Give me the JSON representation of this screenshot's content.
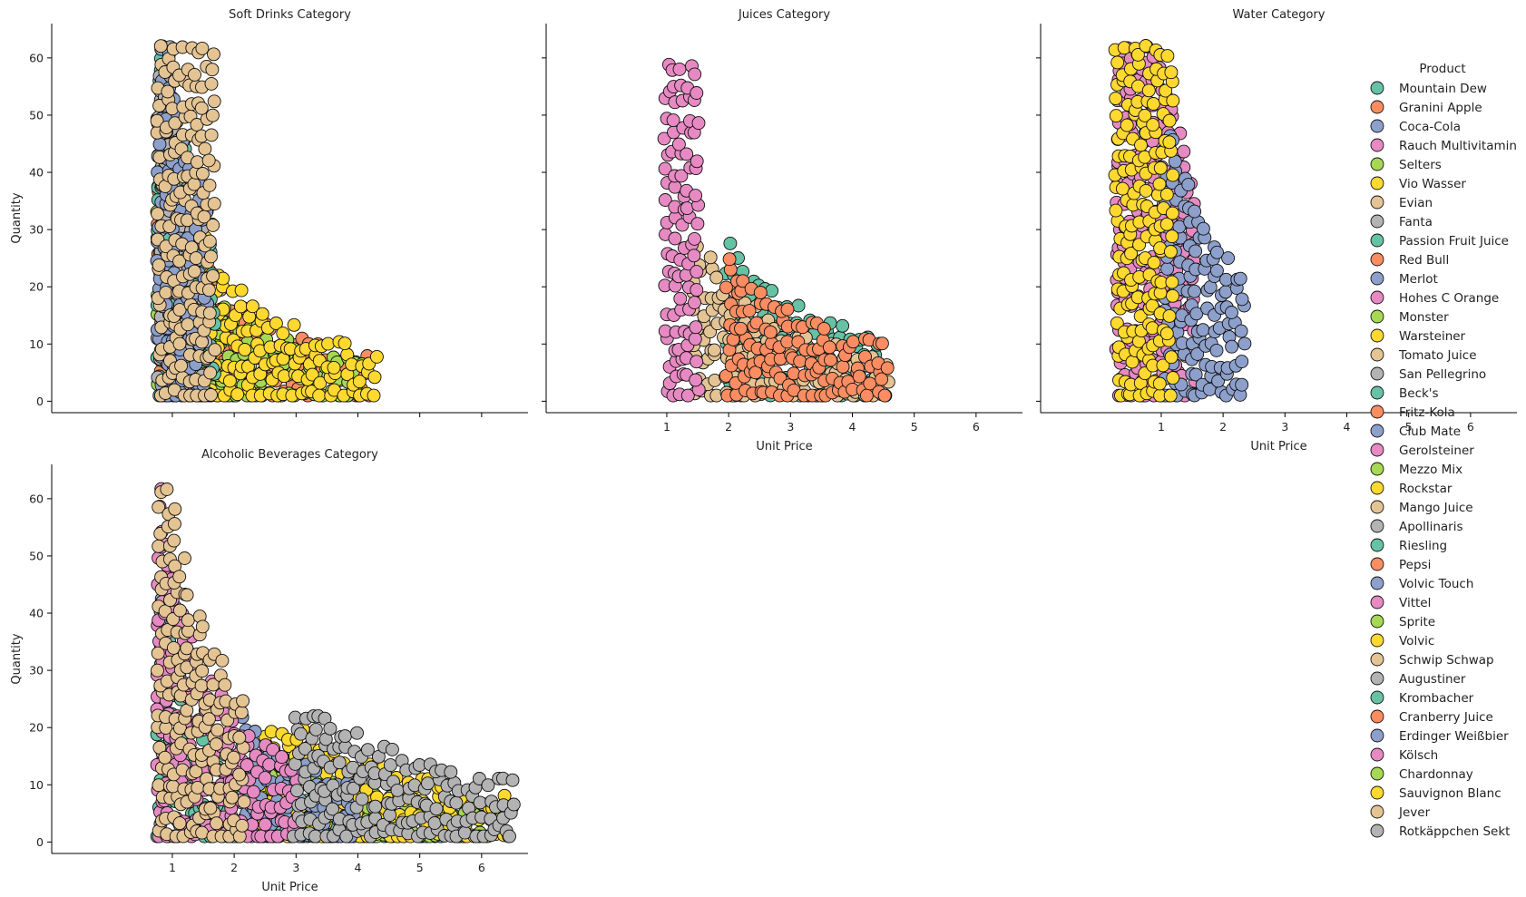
{
  "chart_data": {
    "type": "scatter",
    "x_label": "Unit Price",
    "y_label": "Quantity",
    "xlim": [
      -0.95,
      6.75
    ],
    "ylim": [
      -2,
      66
    ],
    "x_ticks": [
      1,
      2,
      3,
      4,
      5,
      6
    ],
    "y_ticks": [
      0,
      10,
      20,
      30,
      40,
      50,
      60
    ],
    "legend": {
      "title": "Product",
      "placement": "right",
      "items": [
        {
          "name": "Mountain Dew",
          "color": "#66c2a5"
        },
        {
          "name": "Granini Apple",
          "color": "#fc8d62"
        },
        {
          "name": "Coca-Cola",
          "color": "#8da0cb"
        },
        {
          "name": "Rauch Multivitamin",
          "color": "#e78ac3"
        },
        {
          "name": "Selters",
          "color": "#a6d854"
        },
        {
          "name": "Vio Wasser",
          "color": "#ffd92f"
        },
        {
          "name": "Evian",
          "color": "#e5c494"
        },
        {
          "name": "Fanta",
          "color": "#b3b3b3"
        },
        {
          "name": "Passion Fruit Juice",
          "color": "#66c2a5"
        },
        {
          "name": "Red Bull",
          "color": "#fc8d62"
        },
        {
          "name": "Merlot",
          "color": "#8da0cb"
        },
        {
          "name": "Hohes C Orange",
          "color": "#e78ac3"
        },
        {
          "name": "Monster",
          "color": "#a6d854"
        },
        {
          "name": "Warsteiner",
          "color": "#ffd92f"
        },
        {
          "name": "Tomato Juice",
          "color": "#e5c494"
        },
        {
          "name": "San Pellegrino",
          "color": "#b3b3b3"
        },
        {
          "name": "Beck's",
          "color": "#66c2a5"
        },
        {
          "name": "Fritz-Kola",
          "color": "#fc8d62"
        },
        {
          "name": "Club Mate",
          "color": "#8da0cb"
        },
        {
          "name": "Gerolsteiner",
          "color": "#e78ac3"
        },
        {
          "name": "Mezzo Mix",
          "color": "#a6d854"
        },
        {
          "name": "Rockstar",
          "color": "#ffd92f"
        },
        {
          "name": "Mango Juice",
          "color": "#e5c494"
        },
        {
          "name": "Apollinaris",
          "color": "#b3b3b3"
        },
        {
          "name": "Riesling",
          "color": "#66c2a5"
        },
        {
          "name": "Pepsi",
          "color": "#fc8d62"
        },
        {
          "name": "Volvic Touch",
          "color": "#8da0cb"
        },
        {
          "name": "Vittel",
          "color": "#e78ac3"
        },
        {
          "name": "Sprite",
          "color": "#a6d854"
        },
        {
          "name": "Volvic",
          "color": "#ffd92f"
        },
        {
          "name": "Schwip Schwap",
          "color": "#e5c494"
        },
        {
          "name": "Augustiner",
          "color": "#b3b3b3"
        },
        {
          "name": "Krombacher",
          "color": "#66c2a5"
        },
        {
          "name": "Cranberry Juice",
          "color": "#fc8d62"
        },
        {
          "name": "Erdinger Weißbier",
          "color": "#8da0cb"
        },
        {
          "name": "Kölsch",
          "color": "#e78ac3"
        },
        {
          "name": "Chardonnay",
          "color": "#a6d854"
        },
        {
          "name": "Sauvignon Blanc",
          "color": "#ffd92f"
        },
        {
          "name": "Jever",
          "color": "#e5c494"
        },
        {
          "name": "Rotkäppchen Sekt",
          "color": "#b3b3b3"
        }
      ]
    },
    "panels": [
      {
        "title": "Soft Drinks Category",
        "show_x_ticks": false,
        "show_x_label": false,
        "show_y_ticks": true,
        "show_y_label": true,
        "series": [
          {
            "product": "Red Bull",
            "color": "#fc8d62",
            "x_range": [
              0.8,
              4.2
            ],
            "q_max": 63,
            "c": 20
          },
          {
            "product": "Monster",
            "color": "#a6d854",
            "x_range": [
              0.8,
              4.1
            ],
            "q_max": 63,
            "c": 18
          },
          {
            "product": "Rockstar",
            "color": "#ffd92f",
            "x_range": [
              1.5,
              4.35
            ],
            "q_max": 40,
            "c": 22
          },
          {
            "product": "Mountain Dew",
            "color": "#66c2a5",
            "x_range": [
              0.8,
              1.7
            ],
            "q_max": 63,
            "c": 30
          },
          {
            "product": "Fanta",
            "color": "#b3b3b3",
            "x_range": [
              0.8,
              1.6
            ],
            "q_max": 63,
            "c": 30
          },
          {
            "product": "Coca-Cola",
            "color": "#8da0cb",
            "x_range": [
              0.8,
              1.6
            ],
            "q_max": 63,
            "c": 30
          },
          {
            "product": "Schwip Schwap",
            "color": "#e5c494",
            "x_range": [
              0.8,
              1.7
            ],
            "q_max": 63,
            "c": 60
          }
        ]
      },
      {
        "title": "Juices Category",
        "show_x_ticks": true,
        "show_x_label": true,
        "show_y_ticks": false,
        "show_y_label": false,
        "series": [
          {
            "product": "Passion Fruit Juice",
            "color": "#66c2a5",
            "x_range": [
              2.0,
              4.45
            ],
            "q_max": 30,
            "c": 28
          },
          {
            "product": "Tomato Juice",
            "color": "#e5c494",
            "x_range": [
              1.45,
              4.6
            ],
            "q_max": 38,
            "c": 22
          },
          {
            "product": "Cranberry Juice",
            "color": "#fc8d62",
            "x_range": [
              2.0,
              4.55
            ],
            "q_max": 31,
            "c": 26
          },
          {
            "product": "Rauch Multivitamin",
            "color": "#e78ac3",
            "x_range": [
              1.0,
              1.5
            ],
            "q_max": 60,
            "c": 80
          }
        ]
      },
      {
        "title": "Water Category",
        "show_x_ticks": true,
        "show_x_label": true,
        "show_y_ticks": false,
        "show_y_label": false,
        "series": [
          {
            "product": "Gerolsteiner",
            "color": "#e78ac3",
            "x_range": [
              0.3,
              1.5
            ],
            "q_max": 63,
            "c": 36
          },
          {
            "product": "Volvic Touch",
            "color": "#8da0cb",
            "x_range": [
              1.1,
              2.3
            ],
            "q_max": 63,
            "c": 30
          },
          {
            "product": "Vio Wasser",
            "color": "#ffd92f",
            "x_range": [
              0.3,
              1.2
            ],
            "q_max": 63,
            "c": 80
          }
        ]
      },
      {
        "title": "Alcoholic Beverages Category",
        "show_x_ticks": true,
        "show_x_label": true,
        "show_y_ticks": true,
        "show_y_label": true,
        "series": [
          {
            "product": "Krombacher",
            "color": "#66c2a5",
            "x_range": [
              0.8,
              5.8
            ],
            "q_max": 63,
            "c": 18
          },
          {
            "product": "Chardonnay",
            "color": "#a6d854",
            "x_range": [
              2.5,
              6.0
            ],
            "q_max": 20,
            "c": 20
          },
          {
            "product": "Sauvignon Blanc",
            "color": "#ffd92f",
            "x_range": [
              2.5,
              6.5
            ],
            "q_max": 20,
            "c": 32
          },
          {
            "product": "Erdinger Weißbier",
            "color": "#8da0cb",
            "x_range": [
              2.0,
              4.0
            ],
            "q_max": 26,
            "c": 24
          },
          {
            "product": "Kölsch",
            "color": "#e78ac3",
            "x_range": [
              0.8,
              3.0
            ],
            "q_max": 63,
            "c": 26
          },
          {
            "product": "Rotkäppchen Sekt",
            "color": "#b3b3b3",
            "x_range": [
              3.0,
              6.5
            ],
            "q_max": 22,
            "c": 40
          },
          {
            "product": "Jever",
            "color": "#e5c494",
            "x_range": [
              0.8,
              2.2
            ],
            "q_max": 63,
            "c": 32
          }
        ]
      }
    ]
  }
}
